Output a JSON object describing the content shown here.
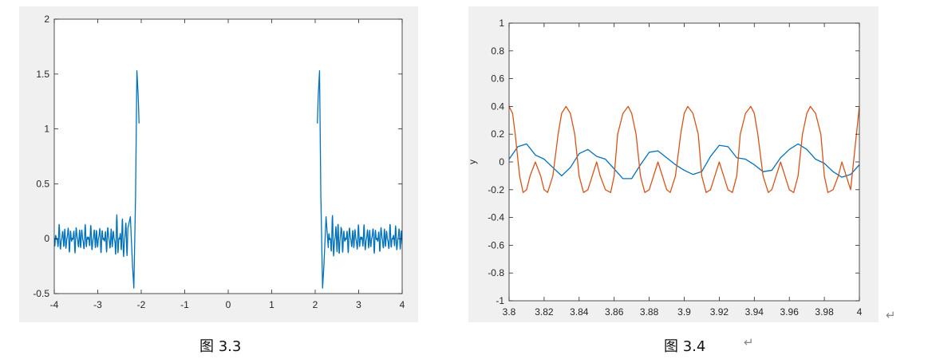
{
  "chart_data": [
    {
      "type": "line",
      "title": "",
      "xlabel": "",
      "ylabel": "",
      "xlim": [
        -4,
        4
      ],
      "ylim": [
        -0.5,
        2
      ],
      "x_ticks": [
        "-4",
        "-3",
        "-2",
        "-1",
        "0",
        "1",
        "2",
        "3",
        "4"
      ],
      "y_ticks": [
        "-0.5",
        "0",
        "0.5",
        "1",
        "1.5",
        "2"
      ],
      "grid": false,
      "series": [
        {
          "color": "#0072bd",
          "segments": [
            {
              "x": [
                -4.0,
                -3.6,
                -3.2,
                -2.8,
                -2.5,
                -2.3,
                -2.25,
                -2.2,
                -2.17,
                -2.13,
                -2.1,
                -2.07,
                -2.05
              ],
              "y": [
                0.0,
                0.0,
                0.0,
                0.0,
                0.0,
                0.1,
                0.2,
                -0.25,
                -0.45,
                0.4,
                1.53,
                1.3,
                1.05
              ],
              "oscillation": {
                "x_range": [
                  -4.0,
                  -2.3
                ],
                "amplitude": 0.12
              }
            },
            {
              "x": [
                2.05,
                2.07,
                2.1,
                2.13,
                2.17,
                2.2,
                2.25,
                2.3,
                2.5,
                2.8,
                3.2,
                3.6,
                4.0
              ],
              "y": [
                1.05,
                1.3,
                1.53,
                0.4,
                -0.45,
                -0.25,
                0.2,
                0.1,
                0.0,
                0.0,
                0.0,
                0.0,
                0.0
              ],
              "oscillation": {
                "x_range": [
                  2.3,
                  4.0
                ],
                "amplitude": 0.12
              }
            }
          ]
        }
      ],
      "caption": "图 3.3"
    },
    {
      "type": "line",
      "title": "",
      "xlabel": "",
      "ylabel": "y",
      "xlim": [
        3.8,
        4
      ],
      "ylim": [
        -1,
        1
      ],
      "x_ticks": [
        "3.8",
        "3.82",
        "3.84",
        "3.86",
        "3.88",
        "3.9",
        "3.92",
        "3.94",
        "3.96",
        "3.98",
        "4"
      ],
      "y_ticks": [
        "-1",
        "-0.8",
        "-0.6",
        "-0.4",
        "-0.2",
        "0",
        "0.2",
        "0.4",
        "0.6",
        "0.8",
        "1"
      ],
      "grid": false,
      "series": [
        {
          "color": "#0072bd",
          "x": [
            3.8,
            3.805,
            3.81,
            3.815,
            3.82,
            3.825,
            3.83,
            3.835,
            3.84,
            3.845,
            3.85,
            3.855,
            3.86,
            3.865,
            3.87,
            3.875,
            3.88,
            3.885,
            3.89,
            3.895,
            3.9,
            3.905,
            3.91,
            3.915,
            3.92,
            3.925,
            3.93,
            3.935,
            3.94,
            3.945,
            3.95,
            3.955,
            3.96,
            3.965,
            3.97,
            3.975,
            3.98,
            3.985,
            3.99,
            3.995,
            4.0
          ],
          "y": [
            0.02,
            0.11,
            0.13,
            0.05,
            0.02,
            -0.04,
            -0.1,
            -0.04,
            0.06,
            0.09,
            0.04,
            0.02,
            -0.05,
            -0.12,
            -0.12,
            -0.02,
            0.07,
            0.08,
            0.03,
            -0.02,
            -0.06,
            -0.09,
            -0.07,
            0.04,
            0.12,
            0.11,
            0.03,
            0.02,
            -0.02,
            -0.07,
            -0.06,
            0.03,
            0.09,
            0.13,
            0.09,
            0.02,
            -0.01,
            -0.07,
            -0.11,
            -0.09,
            -0.02
          ]
        },
        {
          "color": "#d95319",
          "x": [
            3.8,
            3.802,
            3.8035,
            3.806,
            3.808,
            3.81,
            3.812,
            3.815,
            3.818,
            3.82,
            3.822,
            3.825,
            3.828,
            3.83,
            3.8325,
            3.835,
            3.8375,
            3.84,
            3.8425,
            3.845,
            3.8475,
            3.85,
            3.852,
            3.855,
            3.858,
            3.86,
            3.862,
            3.865,
            3.868,
            3.87,
            3.8725,
            3.875,
            3.8775,
            3.88,
            3.8825,
            3.885,
            3.8875,
            3.89,
            3.892,
            3.895,
            3.898,
            3.9,
            3.902,
            3.905,
            3.908,
            3.91,
            3.9125,
            3.915,
            3.9175,
            3.92,
            3.9225,
            3.925,
            3.9275,
            3.93,
            3.932,
            3.935,
            3.938,
            3.94,
            3.942,
            3.945,
            3.948,
            3.95,
            3.9525,
            3.955,
            3.9575,
            3.96,
            3.9625,
            3.965,
            3.9675,
            3.97,
            3.972,
            3.975,
            3.978,
            3.98,
            3.982,
            3.985,
            3.988,
            3.99,
            3.9925,
            3.995,
            3.9975,
            4.0
          ],
          "y": [
            0.4,
            0.35,
            0.2,
            -0.1,
            -0.22,
            -0.2,
            -0.1,
            0.0,
            -0.1,
            -0.2,
            -0.22,
            -0.1,
            0.2,
            0.35,
            0.4,
            0.35,
            0.2,
            -0.1,
            -0.22,
            -0.2,
            -0.1,
            0.0,
            -0.1,
            -0.2,
            -0.22,
            -0.1,
            0.2,
            0.35,
            0.4,
            0.35,
            0.2,
            -0.1,
            -0.22,
            -0.2,
            -0.1,
            0.0,
            -0.1,
            -0.2,
            -0.22,
            -0.1,
            0.2,
            0.35,
            0.4,
            0.35,
            0.2,
            -0.1,
            -0.22,
            -0.2,
            -0.1,
            0.0,
            -0.1,
            -0.2,
            -0.22,
            -0.1,
            0.2,
            0.35,
            0.4,
            0.35,
            0.2,
            -0.1,
            -0.22,
            -0.2,
            -0.1,
            0.0,
            -0.1,
            -0.2,
            -0.22,
            -0.1,
            0.2,
            0.35,
            0.4,
            0.35,
            0.2,
            -0.1,
            -0.22,
            -0.2,
            -0.1,
            0.0,
            -0.1,
            -0.2,
            0.1,
            0.4
          ]
        }
      ],
      "caption": "图 3.4"
    }
  ],
  "return_glyph": "↵"
}
